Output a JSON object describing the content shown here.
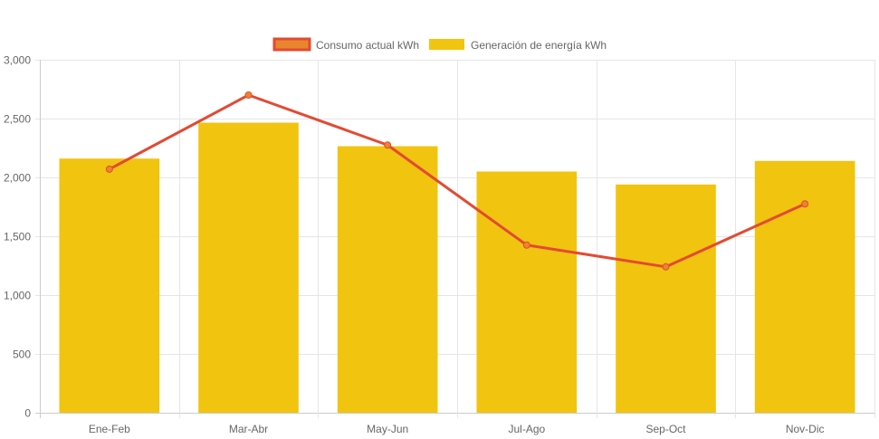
{
  "chart_data": {
    "type": "bar",
    "categories": [
      "Ene-Feb",
      "Mar-Abr",
      "May-Jun",
      "Jul-Ago",
      "Sep-Oct",
      "Nov-Dic"
    ],
    "ylim": [
      0,
      3000
    ],
    "y_ticks": [
      0,
      500,
      1000,
      1500,
      2000,
      2500,
      3000
    ],
    "y_tick_labels": [
      "0",
      "500",
      "1,000",
      "1,500",
      "2,000",
      "2,500",
      "3,000"
    ],
    "grid": true,
    "legend_position": "top-center",
    "series": [
      {
        "name": "Consumo actual kWh",
        "type": "line",
        "color": "#e34a33",
        "point_fill": "#e8862d",
        "values": [
          2070,
          2700,
          2275,
          1425,
          1240,
          1775
        ]
      },
      {
        "name": "Generación de energía kWh",
        "type": "bar",
        "color": "#f1c40f",
        "values": [
          2160,
          2465,
          2265,
          2050,
          1940,
          2140
        ]
      }
    ]
  }
}
